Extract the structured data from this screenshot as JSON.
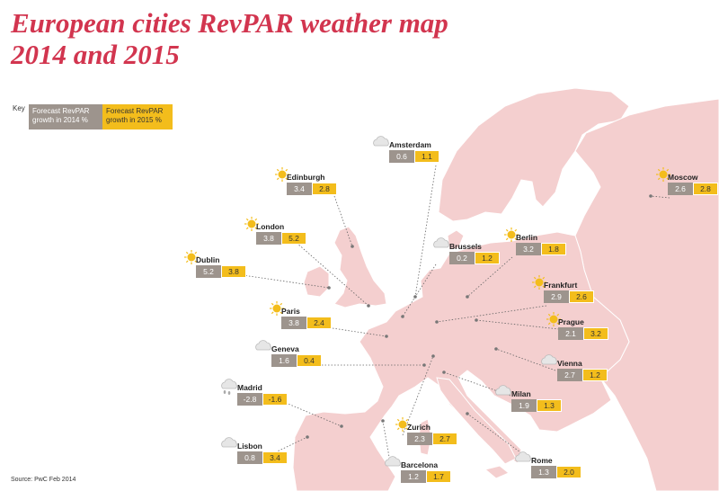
{
  "title_line1": "European cities RevPAR weather map",
  "title_line2": "2014 and 2015",
  "key": {
    "label": "Key",
    "col2014": "Forecast RevPAR growth in 2014 %",
    "col2015": "Forecast RevPAR growth in 2015 %"
  },
  "cities": [
    {
      "name": "Amsterdam",
      "v2014": "0.6",
      "v2015": "1.1",
      "weather": "cloud-icon"
    },
    {
      "name": "Edinburgh",
      "v2014": "3.4",
      "v2015": "2.8",
      "weather": "sun-icon"
    },
    {
      "name": "Moscow",
      "v2014": "2.6",
      "v2015": "2.8",
      "weather": "sun-icon"
    },
    {
      "name": "London",
      "v2014": "3.8",
      "v2015": "5.2",
      "weather": "sun-icon"
    },
    {
      "name": "Brussels",
      "v2014": "0.2",
      "v2015": "1.2",
      "weather": "cloud-icon"
    },
    {
      "name": "Berlin",
      "v2014": "3.2",
      "v2015": "1.8",
      "weather": "sun-icon"
    },
    {
      "name": "Dublin",
      "v2014": "5.2",
      "v2015": "3.8",
      "weather": "sun-icon"
    },
    {
      "name": "Frankfurt",
      "v2014": "2.9",
      "v2015": "2.6",
      "weather": "sun-icon"
    },
    {
      "name": "Paris",
      "v2014": "3.8",
      "v2015": "2.4",
      "weather": "sun-icon"
    },
    {
      "name": "Prague",
      "v2014": "2.1",
      "v2015": "3.2",
      "weather": "sun-icon"
    },
    {
      "name": "Geneva",
      "v2014": "1.6",
      "v2015": "0.4",
      "weather": "cloud-icon"
    },
    {
      "name": "Vienna",
      "v2014": "2.7",
      "v2015": "1.2",
      "weather": "cloud-icon"
    },
    {
      "name": "Madrid",
      "v2014": "-2.8",
      "v2015": "-1.6",
      "weather": "rain-cloud-icon"
    },
    {
      "name": "Milan",
      "v2014": "1.9",
      "v2015": "1.3",
      "weather": "cloud-icon"
    },
    {
      "name": "Zurich",
      "v2014": "2.3",
      "v2015": "2.7",
      "weather": "sun-icon"
    },
    {
      "name": "Lisbon",
      "v2014": "0.8",
      "v2015": "3.4",
      "weather": "cloud-icon"
    },
    {
      "name": "Rome",
      "v2014": "1.3",
      "v2015": "2.0",
      "weather": "cloud-icon"
    },
    {
      "name": "Barcelona",
      "v2014": "1.2",
      "v2015": "1.7",
      "weather": "cloud-icon"
    }
  ],
  "source": "Source: PwC Feb 2014",
  "colors": {
    "title": "#d2354f",
    "land": "#f4cfcf",
    "v2014": "#9d948d",
    "v2015": "#f3bd1c"
  }
}
